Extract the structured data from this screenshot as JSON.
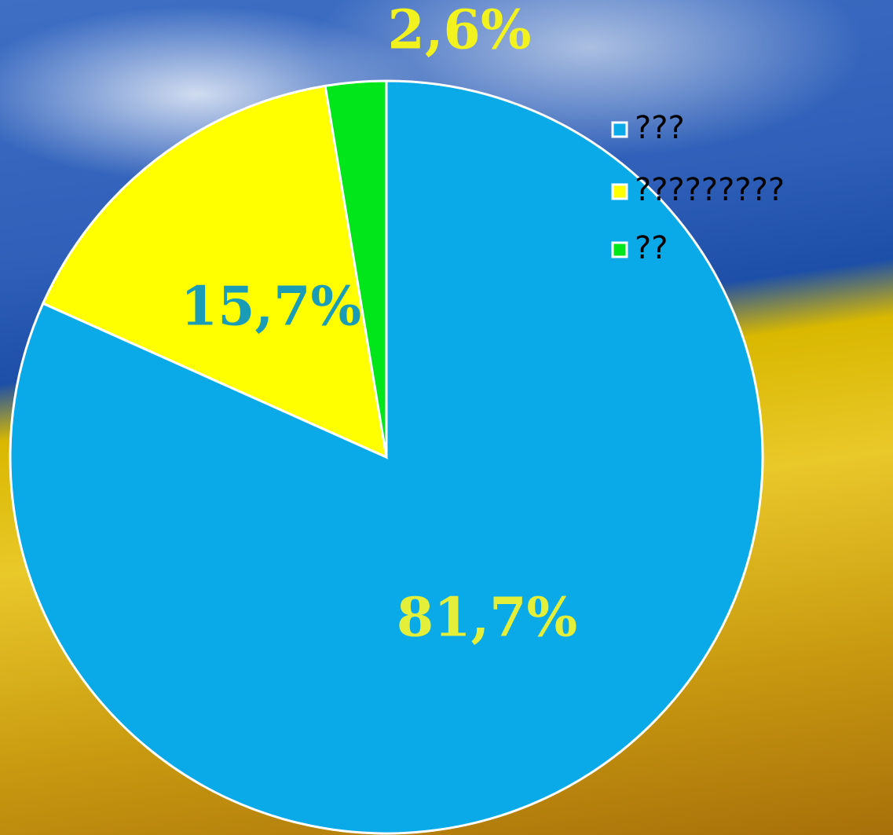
{
  "chart_data": {
    "type": "pie",
    "categories": [
      "???",
      "?????????",
      "??"
    ],
    "values": [
      81.7,
      15.7,
      2.6
    ],
    "value_labels": [
      "81,7%",
      "15,7%",
      "2,6%"
    ],
    "colors": [
      "#0aa9e8",
      "#ffff00",
      "#00e61a"
    ],
    "label_colors": [
      "#e4ef3a",
      "#1b9cb6",
      "#f2f21e"
    ],
    "legend": "top-right"
  }
}
